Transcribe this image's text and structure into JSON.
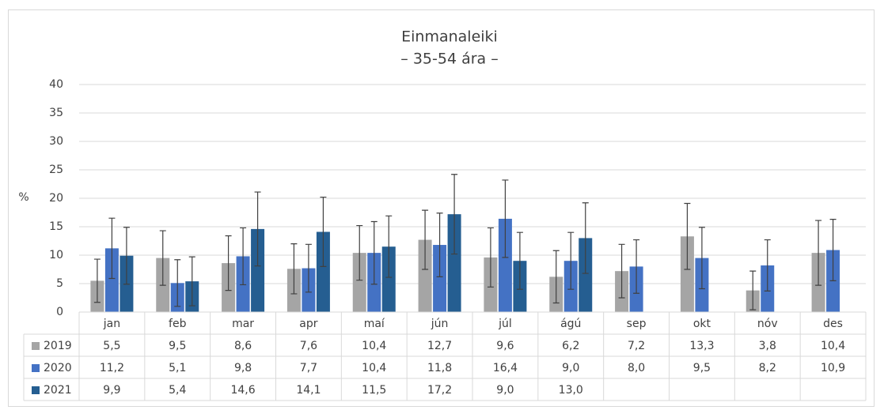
{
  "chart_data": {
    "type": "bar",
    "title": "Einmanaleiki",
    "subtitle": "– 35-54 ára –",
    "y_label": "%",
    "categories": [
      "jan",
      "feb",
      "mar",
      "apr",
      "maí",
      "jún",
      "júl",
      "ágú",
      "sep",
      "okt",
      "nóv",
      "des"
    ],
    "series": [
      {
        "name": "2019",
        "color": "#a5a5a5",
        "values": [
          5.5,
          9.5,
          8.6,
          7.6,
          10.4,
          12.7,
          9.6,
          6.2,
          7.2,
          13.3,
          3.8,
          10.4
        ],
        "value_labels": [
          "5,5",
          "9,5",
          "8,6",
          "7,6",
          "10,4",
          "12,7",
          "9,6",
          "6,2",
          "7,2",
          "13,3",
          "3,8",
          "10,4"
        ],
        "error": [
          3.8,
          4.8,
          4.8,
          4.4,
          4.8,
          5.2,
          5.2,
          4.6,
          4.7,
          5.8,
          3.4,
          5.7
        ]
      },
      {
        "name": "2020",
        "color": "#4472c4",
        "values": [
          11.2,
          5.1,
          9.8,
          7.7,
          10.4,
          11.8,
          16.4,
          9.0,
          8.0,
          9.5,
          8.2,
          10.9
        ],
        "value_labels": [
          "11,2",
          "5,1",
          "9,8",
          "7,7",
          "10,4",
          "11,8",
          "16,4",
          "9,0",
          "8,0",
          "9,5",
          "8,2",
          "10,9"
        ],
        "error": [
          5.3,
          4.1,
          5.0,
          4.2,
          5.5,
          5.6,
          6.8,
          5.0,
          4.7,
          5.4,
          4.5,
          5.4
        ]
      },
      {
        "name": "2021",
        "color": "#255e91",
        "values": [
          9.9,
          5.4,
          14.6,
          14.1,
          11.5,
          17.2,
          9.0,
          13.0,
          null,
          null,
          null,
          null
        ],
        "value_labels": [
          "9,9",
          "5,4",
          "14,6",
          "14,1",
          "11,5",
          "17,2",
          "9,0",
          "13,0",
          null,
          null,
          null,
          null
        ],
        "error": [
          5.0,
          4.3,
          6.5,
          6.1,
          5.4,
          7.0,
          5.0,
          6.2,
          null,
          null,
          null,
          null
        ]
      }
    ],
    "ylim": [
      0,
      40
    ],
    "yticks": [
      0,
      5,
      10,
      15,
      20,
      25,
      30,
      35,
      40
    ],
    "grid": true
  }
}
